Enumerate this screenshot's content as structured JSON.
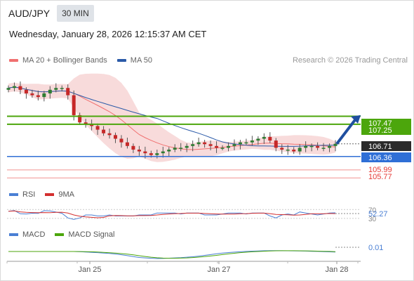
{
  "header": {
    "symbol": "AUD/JPY",
    "timeframe": "30 MIN"
  },
  "datetime": "Wednesday, January 28, 2026 12:15:37 AM CET",
  "legend": {
    "ma20": "MA 20 + Bollinger Bands",
    "ma50": "MA 50"
  },
  "credit": "Research © 2026 Trading Central",
  "colors": {
    "ma20": "#f07070",
    "ma50": "#2b5aa8",
    "bands": "#f6cfcf",
    "green": "#4ca60c",
    "blue_level": "#2f6fd6",
    "red_level": "#e53935",
    "rsi": "#4a7fd4",
    "rsi_ma": "#d32f2f",
    "macd": "#4a7fd4",
    "macd_signal": "#4ca60c",
    "arrow": "#1f4fa0"
  },
  "price_labels": [
    {
      "text": "107.47",
      "type": "resistance"
    },
    {
      "text": "107.25",
      "type": "resistance"
    },
    {
      "text": "106.71",
      "type": "current"
    },
    {
      "text": "106.36",
      "type": "pivot"
    },
    {
      "text": "105.99",
      "type": "support"
    },
    {
      "text": "105.77",
      "type": "support"
    }
  ],
  "rsi": {
    "label": "RSI",
    "ma_label": "9MA",
    "value": "52.27",
    "upper": "70",
    "lower": "30"
  },
  "macd": {
    "label": "MACD",
    "signal_label": "MACD Signal",
    "value": "0.01"
  },
  "x_ticks": [
    "Jan 25",
    "Jan 27",
    "Jan 28"
  ],
  "chart_data": {
    "type": "candlestick",
    "title": "AUD/JPY",
    "y_range": [
      105.6,
      108.7
    ],
    "levels": [
      {
        "value": 107.47,
        "kind": "resistance"
      },
      {
        "value": 107.25,
        "kind": "resistance"
      },
      {
        "value": 106.36,
        "kind": "pivot"
      },
      {
        "value": 105.99,
        "kind": "support"
      },
      {
        "value": 105.77,
        "kind": "support"
      }
    ],
    "last_price": 106.71,
    "close_series": [
      108.25,
      108.3,
      108.2,
      108.1,
      108.05,
      108.0,
      108.1,
      108.2,
      108.25,
      108.25,
      108.05,
      107.5,
      107.3,
      107.25,
      107.2,
      107.1,
      107.0,
      106.95,
      106.85,
      106.75,
      106.65,
      106.55,
      106.5,
      106.45,
      106.4,
      106.45,
      106.5,
      106.55,
      106.6,
      106.6,
      106.65,
      106.7,
      106.75,
      106.7,
      106.65,
      106.6,
      106.6,
      106.65,
      106.7,
      106.75,
      106.75,
      106.8,
      106.85,
      106.9,
      106.8,
      106.6,
      106.55,
      106.55,
      106.5,
      106.6,
      106.65,
      106.65,
      106.6,
      106.6,
      106.65,
      106.71
    ],
    "series": [
      {
        "name": "MA 20 + Bollinger Bands"
      },
      {
        "name": "MA 50"
      }
    ]
  }
}
